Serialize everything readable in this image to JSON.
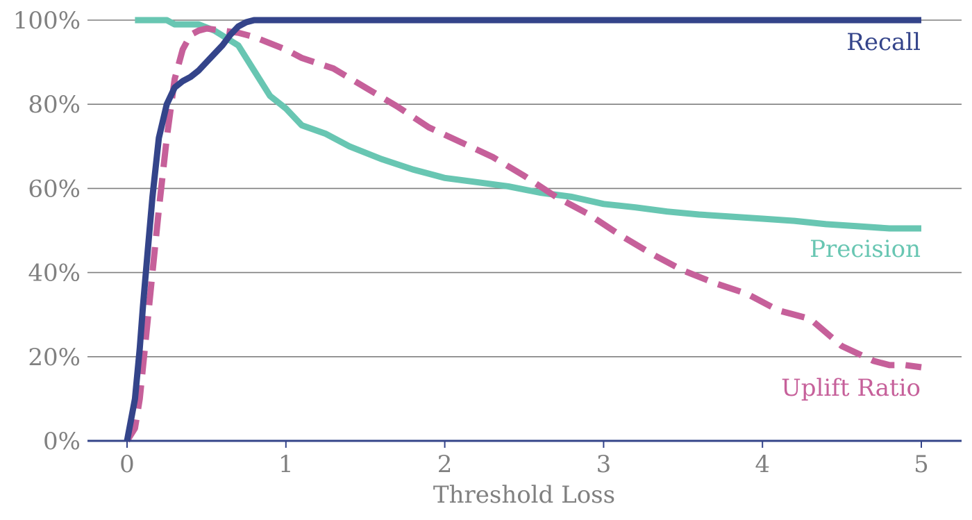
{
  "chart_data": {
    "type": "line",
    "title": "",
    "xlabel": "Threshold Loss",
    "ylabel": "",
    "xlim": [
      -0.25,
      5.25
    ],
    "ylim": [
      0,
      100
    ],
    "x_ticks": [
      "0",
      "1",
      "2",
      "3",
      "4",
      "5"
    ],
    "y_ticks": [
      "0%",
      "20%",
      "40%",
      "60%",
      "80%",
      "100%"
    ],
    "grid": true,
    "series": [
      {
        "name": "Recall",
        "color": "#34448a",
        "dash": "solid",
        "points": [
          [
            0,
            0
          ],
          [
            0.05,
            10
          ],
          [
            0.08,
            22
          ],
          [
            0.1,
            32
          ],
          [
            0.13,
            45
          ],
          [
            0.16,
            58
          ],
          [
            0.2,
            72
          ],
          [
            0.25,
            80
          ],
          [
            0.3,
            84
          ],
          [
            0.35,
            85.5
          ],
          [
            0.4,
            86.5
          ],
          [
            0.45,
            88
          ],
          [
            0.5,
            90
          ],
          [
            0.55,
            92
          ],
          [
            0.6,
            94
          ],
          [
            0.65,
            96.5
          ],
          [
            0.7,
            98.5
          ],
          [
            0.75,
            99.5
          ],
          [
            0.8,
            100
          ],
          [
            1,
            100
          ],
          [
            2,
            100
          ],
          [
            3,
            100
          ],
          [
            4,
            100
          ],
          [
            5,
            100
          ]
        ]
      },
      {
        "name": "Precision",
        "color": "#68c6b2",
        "dash": "solid",
        "points": [
          [
            0.05,
            100
          ],
          [
            0.25,
            100
          ],
          [
            0.3,
            99
          ],
          [
            0.45,
            99
          ],
          [
            0.55,
            97.5
          ],
          [
            0.7,
            94
          ],
          [
            0.8,
            88
          ],
          [
            0.9,
            82
          ],
          [
            1,
            79
          ],
          [
            1.1,
            75
          ],
          [
            1.25,
            73
          ],
          [
            1.4,
            70
          ],
          [
            1.6,
            67
          ],
          [
            1.8,
            64.5
          ],
          [
            2,
            62.5
          ],
          [
            2.2,
            61.5
          ],
          [
            2.4,
            60.5
          ],
          [
            2.6,
            59
          ],
          [
            2.8,
            58
          ],
          [
            3,
            56.3
          ],
          [
            3.2,
            55.5
          ],
          [
            3.4,
            54.5
          ],
          [
            3.6,
            53.8
          ],
          [
            3.8,
            53.3
          ],
          [
            4,
            52.8
          ],
          [
            4.2,
            52.3
          ],
          [
            4.4,
            51.5
          ],
          [
            4.6,
            51
          ],
          [
            4.8,
            50.5
          ],
          [
            5,
            50.5
          ]
        ]
      },
      {
        "name": "Uplift Ratio",
        "color": "#c6609a",
        "dash": "dashed",
        "points": [
          [
            0,
            0
          ],
          [
            0.05,
            3
          ],
          [
            0.08,
            10
          ],
          [
            0.12,
            25
          ],
          [
            0.16,
            40
          ],
          [
            0.2,
            55
          ],
          [
            0.25,
            72
          ],
          [
            0.3,
            86
          ],
          [
            0.35,
            93
          ],
          [
            0.4,
            96.5
          ],
          [
            0.45,
            97.5
          ],
          [
            0.5,
            98
          ],
          [
            0.6,
            97.5
          ],
          [
            0.7,
            97
          ],
          [
            0.8,
            96
          ],
          [
            0.9,
            94.5
          ],
          [
            1,
            93
          ],
          [
            1.1,
            91
          ],
          [
            1.3,
            88.5
          ],
          [
            1.5,
            84
          ],
          [
            1.7,
            79.5
          ],
          [
            1.9,
            74.5
          ],
          [
            2.1,
            71
          ],
          [
            2.3,
            67.5
          ],
          [
            2.5,
            63
          ],
          [
            2.7,
            58
          ],
          [
            2.9,
            54
          ],
          [
            3.1,
            49
          ],
          [
            3.3,
            44.5
          ],
          [
            3.5,
            40.5
          ],
          [
            3.7,
            37.5
          ],
          [
            3.9,
            35
          ],
          [
            4.1,
            31
          ],
          [
            4.3,
            29
          ],
          [
            4.5,
            22.5
          ],
          [
            4.7,
            19
          ],
          [
            4.8,
            18
          ],
          [
            4.9,
            18
          ],
          [
            5,
            17.5
          ]
        ]
      }
    ]
  }
}
